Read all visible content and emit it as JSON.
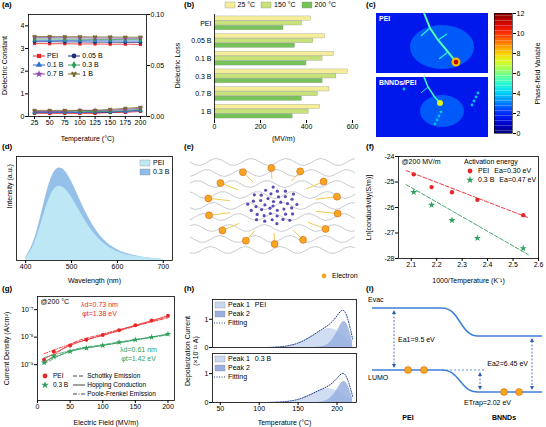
{
  "chart_data": [
    {
      "panel": "(a)",
      "type": "line",
      "xlabel": "Temperature (°C)",
      "ylabel": "Dielectric Constant",
      "y2label": "Dielectric Loss",
      "x": [
        25,
        50,
        75,
        100,
        125,
        150,
        175,
        200
      ],
      "xlim": [
        15,
        210
      ],
      "xticks": [
        25,
        50,
        75,
        100,
        125,
        150,
        175,
        200
      ],
      "ylim": [
        0,
        4.5
      ],
      "yticks": [
        0,
        1,
        2,
        3,
        4
      ],
      "y2lim": [
        0,
        0.1
      ],
      "y2ticks": [
        {
          "value": 0,
          "label": "0.00"
        },
        {
          "value": 0.05,
          "label": "0.05"
        },
        {
          "value": 0.1,
          "label": "0.10"
        }
      ],
      "legend": "center left",
      "series": [
        {
          "name": "PEI",
          "color": "#e8262a",
          "marker": "square",
          "values": [
            3.22,
            3.21,
            3.21,
            3.2,
            3.2,
            3.19,
            3.19,
            3.18
          ]
        },
        {
          "name": "0.05 B",
          "color": "#1b2f7d",
          "marker": "circle",
          "values": [
            3.3,
            3.3,
            3.29,
            3.29,
            3.28,
            3.28,
            3.27,
            3.27
          ]
        },
        {
          "name": "0.1 B",
          "color": "#2f6fd0",
          "marker": "triangle",
          "values": [
            3.36,
            3.36,
            3.35,
            3.35,
            3.34,
            3.34,
            3.33,
            3.33
          ]
        },
        {
          "name": "0.3 B",
          "color": "#2e9e5b",
          "marker": "diamond",
          "values": [
            3.42,
            3.42,
            3.41,
            3.41,
            3.4,
            3.4,
            3.39,
            3.39
          ]
        },
        {
          "name": "0.7 B",
          "color": "#8e44ad",
          "marker": "star",
          "values": [
            3.48,
            3.48,
            3.47,
            3.47,
            3.46,
            3.46,
            3.45,
            3.45
          ]
        },
        {
          "name": "1 B",
          "color": "#7a6a2f",
          "marker": "wye",
          "values": [
            3.53,
            3.53,
            3.52,
            3.52,
            3.51,
            3.51,
            3.5,
            3.5
          ]
        },
        {
          "name": "PEI",
          "axis": "y2",
          "color": "#e8262a",
          "marker": "square",
          "values": [
            0.003,
            0.003,
            0.003,
            0.003,
            0.003,
            0.004,
            0.004,
            0.005
          ]
        },
        {
          "name": "0.05 B",
          "axis": "y2",
          "color": "#1b2f7d",
          "marker": "circle",
          "values": [
            0.004,
            0.004,
            0.004,
            0.004,
            0.004,
            0.004,
            0.005,
            0.006
          ]
        },
        {
          "name": "0.1 B",
          "axis": "y2",
          "color": "#2f6fd0",
          "marker": "triangle",
          "values": [
            0.004,
            0.004,
            0.004,
            0.004,
            0.005,
            0.005,
            0.005,
            0.006
          ]
        },
        {
          "name": "0.3 B",
          "axis": "y2",
          "color": "#2e9e5b",
          "marker": "diamond",
          "values": [
            0.005,
            0.005,
            0.005,
            0.005,
            0.005,
            0.005,
            0.006,
            0.007
          ]
        },
        {
          "name": "0.7 B",
          "axis": "y2",
          "color": "#8e44ad",
          "marker": "star",
          "values": [
            0.005,
            0.005,
            0.005,
            0.006,
            0.006,
            0.006,
            0.007,
            0.008
          ]
        },
        {
          "name": "1 B",
          "axis": "y2",
          "color": "#7a6a2f",
          "marker": "wye",
          "values": [
            0.006,
            0.006,
            0.006,
            0.006,
            0.006,
            0.007,
            0.008,
            0.009
          ]
        }
      ]
    },
    {
      "panel": "(b)",
      "type": "bar",
      "orientation": "horizontal",
      "categories": [
        "PEI",
        "0.05 B",
        "0.1 B",
        "0.3 B",
        "0.7 B",
        "1 B"
      ],
      "xlabel": "(MV/m)",
      "xlim": [
        0,
        600
      ],
      "xticks": [
        0,
        200,
        400,
        600
      ],
      "legend": "top",
      "series": [
        {
          "name": "25 °C",
          "color": "#f4ee9b",
          "values": [
            420,
            480,
            520,
            580,
            500,
            460
          ]
        },
        {
          "name": "150 °C",
          "color": "#c7e27a",
          "values": [
            380,
            430,
            470,
            530,
            450,
            410
          ]
        },
        {
          "name": "200 °C",
          "color": "#78c25a",
          "values": [
            300,
            350,
            400,
            470,
            380,
            340
          ]
        }
      ]
    },
    {
      "panel": "(c)",
      "type": "diagram",
      "images": [
        "PEI",
        "BNNDs/PEI"
      ],
      "colorbar": {
        "label": "Phase-field Variable",
        "range": [
          0,
          12
        ],
        "ticks": [
          0,
          2,
          4,
          6,
          8,
          10,
          12
        ]
      }
    },
    {
      "panel": "(d)",
      "type": "area",
      "xlabel": "Wavelength (nm)",
      "ylabel": "Intensity (a.u.)",
      "tick_labels": "x",
      "x": [
        400,
        420,
        440,
        460,
        480,
        500,
        520,
        540,
        560,
        580,
        600,
        620,
        640,
        660,
        680,
        700
      ],
      "xlim": [
        380,
        720
      ],
      "xticks": [
        400,
        500,
        600,
        700
      ],
      "ylim": [
        0,
        1.1
      ],
      "legend": "upper right",
      "series": [
        {
          "name": "PEI",
          "color": "#bfe9f5",
          "values": [
            0.02,
            0.15,
            0.5,
            0.78,
            0.8,
            0.68,
            0.5,
            0.34,
            0.22,
            0.14,
            0.09,
            0.06,
            0.04,
            0.03,
            0.02,
            0.01
          ]
        },
        {
          "name": "0.3 B",
          "color": "#8fbde8",
          "values": [
            0.03,
            0.19,
            0.62,
            0.97,
            1.0,
            0.85,
            0.62,
            0.42,
            0.27,
            0.17,
            0.11,
            0.07,
            0.05,
            0.03,
            0.02,
            0.01
          ]
        }
      ]
    },
    {
      "panel": "(e)",
      "type": "diagram",
      "legend": "lower right",
      "legend_label": "Electron"
    },
    {
      "panel": "(f)",
      "type": "scatter",
      "condition": "@200 MV/m",
      "xlabel": "1000/Temperature (K⁻¹)",
      "ylabel": "Ln[conductivity(S/m)]",
      "xlim": [
        2.05,
        2.6
      ],
      "xticks": [
        2.1,
        2.2,
        2.3,
        2.4,
        2.5,
        2.6
      ],
      "ylim": [
        -28,
        -24
      ],
      "yticks": [
        -28,
        -27,
        -26,
        -25,
        -24
      ],
      "legend": "upper right",
      "legend_title": "Activation energy",
      "series": [
        {
          "name": "PEI",
          "activation_energy": "Ea=0.30 eV",
          "color": "#e8262a",
          "marker": "circle",
          "x": [
            2.11,
            2.18,
            2.26,
            2.36,
            2.54
          ],
          "values": [
            -24.7,
            -25.2,
            -25.4,
            -25.7,
            -26.3
          ],
          "fit": {
            "line_style": "dashed",
            "x": [
              2.08,
              2.56
            ],
            "values": [
              -24.55,
              -26.4
            ]
          }
        },
        {
          "name": "0.3 B",
          "activation_energy": "Ea=0.47 eV",
          "color": "#2e9e5b",
          "marker": "star",
          "x": [
            2.11,
            2.18,
            2.26,
            2.36,
            2.54
          ],
          "values": [
            -25.4,
            -25.9,
            -26.5,
            -27.2,
            -27.6
          ],
          "fit": {
            "line_style": "dashed",
            "x": [
              2.08,
              2.56
            ],
            "values": [
              -25.1,
              -27.85
            ]
          }
        }
      ]
    },
    {
      "panel": "(g)",
      "type": "line",
      "log": "y",
      "condition": "@200 °C",
      "xlabel": "Electric Field (MV/m)",
      "ylabel": "Current Density (A/cm²)",
      "xlim": [
        0,
        210
      ],
      "xticks": [
        0,
        50,
        100,
        150,
        200
      ],
      "ylim": [
        5e-11,
        3e-07
      ],
      "yticks": [
        {
          "value": 1e-09,
          "label": "10⁻⁹"
        },
        {
          "value": 1e-08,
          "label": "10⁻⁸"
        },
        {
          "value": 1e-07,
          "label": "10⁻⁷"
        }
      ],
      "legend": "lower left",
      "series": [
        {
          "name": "PEI",
          "type": "scatter",
          "color": "#e8262a",
          "marker": "circle",
          "x": [
            10,
            25,
            50,
            75,
            100,
            125,
            150,
            175,
            200
          ],
          "values": [
            1.5e-09,
            3e-09,
            5e-09,
            8e-09,
            1.2e-08,
            1.8e-08,
            2.7e-08,
            4e-08,
            6e-08
          ]
        },
        {
          "name": "0.3 B",
          "type": "scatter",
          "color": "#2e9e5b",
          "marker": "star",
          "x": [
            10,
            25,
            50,
            75,
            100,
            125,
            150,
            175,
            200
          ],
          "values": [
            1.2e-09,
            2e-09,
            3e-09,
            4e-09,
            5e-09,
            6.5e-09,
            8e-09,
            1e-08,
            1.3e-08
          ]
        }
      ],
      "fits": [
        {
          "name": "Schottky Emission",
          "line_style": "dashed",
          "color": "#e8262a",
          "x": [
            10,
            50,
            100,
            150,
            200
          ],
          "values": [
            1.1e-09,
            5.5e-09,
            1.3e-08,
            2.6e-08,
            5e-08
          ]
        },
        {
          "name": "Hopping Conduction",
          "line_style": "solid",
          "color": "#e8262a",
          "x": [
            10,
            50,
            100,
            150,
            200
          ],
          "values": [
            1.6e-09,
            5e-09,
            1.2e-08,
            2.7e-08,
            6e-08
          ]
        },
        {
          "name": "Poole-Frenkel Emission",
          "line_style": "dashdot",
          "color": "#e8262a",
          "x": [
            10,
            50,
            100,
            150,
            200
          ],
          "values": [
            2.5e-09,
            5.5e-09,
            1.15e-08,
            2.5e-08,
            5.5e-08
          ]
        },
        {
          "name": "Schottky Emission",
          "line_style": "dashed",
          "color": "#2e9e5b",
          "x": [
            10,
            50,
            100,
            150,
            200
          ],
          "values": [
            1.05e-09,
            3.2e-09,
            5.3e-09,
            8.2e-09,
            1.2e-08
          ]
        },
        {
          "name": "Hopping Conduction",
          "line_style": "solid",
          "color": "#2e9e5b",
          "x": [
            10,
            50,
            100,
            150,
            200
          ],
          "values": [
            1.3e-09,
            3e-09,
            5e-09,
            8e-09,
            1.3e-08
          ]
        },
        {
          "name": "Poole-Frenkel Emission",
          "line_style": "dashdot",
          "color": "#2e9e5b",
          "x": [
            10,
            50,
            100,
            150,
            200
          ],
          "values": [
            1.8e-09,
            3.2e-09,
            5e-09,
            7.8e-09,
            1.25e-08
          ]
        }
      ],
      "annotations": [
        {
          "text": "λd=0.73 nm",
          "series": "PEI"
        },
        {
          "text": "φt=1.38 eV",
          "series": "PEI"
        },
        {
          "text": "λd=0.61 nm",
          "series": "0.3 B"
        },
        {
          "text": "φt=1.42 eV",
          "series": "0.3 B"
        }
      ]
    },
    {
      "panel": "(h)",
      "type": "area",
      "xlabel": "Temperature (°C)",
      "ylabel": "Depolarization Current (×10⁻¹¹ A)",
      "x": [
        50,
        60,
        70,
        80,
        90,
        100,
        110,
        120,
        130,
        140,
        150,
        160,
        170,
        180,
        190,
        200,
        210,
        220
      ],
      "xlim": [
        40,
        225
      ],
      "xticks": [
        50,
        100,
        150,
        200
      ],
      "ylim": [
        0,
        1.7
      ],
      "yticks": [
        0,
        1
      ],
      "legend": "upper left",
      "panels": [
        {
          "name": "PEI",
          "series": [
            {
              "name": "Peak 1",
              "color": "#c9d7f0",
              "values": [
                0,
                0,
                0,
                0,
                0,
                0,
                0,
                0.01,
                0.03,
                0.07,
                0.15,
                0.28,
                0.45,
                0.62,
                0.7,
                0.6,
                0.35,
                0.1
              ]
            },
            {
              "name": "Peak 2",
              "color": "#98afe0",
              "values": [
                0,
                0,
                0,
                0,
                0,
                0,
                0,
                0,
                0,
                0,
                0,
                0,
                0,
                0.02,
                0.1,
                0.5,
                1.2,
                0.2
              ]
            },
            {
              "name": "Fitting",
              "type": "line",
              "line_style": "dotted",
              "color": "#1c3d8c",
              "values": [
                0,
                0,
                0,
                0,
                0,
                0,
                0,
                0.01,
                0.03,
                0.07,
                0.15,
                0.28,
                0.45,
                0.64,
                0.8,
                1.1,
                1.55,
                0.3
              ]
            }
          ]
        },
        {
          "name": "0.3 B",
          "series": [
            {
              "name": "Peak 1",
              "color": "#c9d7f0",
              "values": [
                0,
                0,
                0,
                0,
                0,
                0,
                0,
                0.01,
                0.02,
                0.05,
                0.1,
                0.2,
                0.33,
                0.45,
                0.5,
                0.42,
                0.25,
                0.07
              ]
            },
            {
              "name": "Peak 2",
              "color": "#98afe0",
              "values": [
                0,
                0,
                0,
                0,
                0,
                0,
                0,
                0,
                0,
                0,
                0,
                0,
                0,
                0.01,
                0.08,
                0.4,
                0.95,
                0.15
              ]
            },
            {
              "name": "Fitting",
              "type": "line",
              "line_style": "dotted",
              "color": "#1c3d8c",
              "values": [
                0,
                0,
                0,
                0,
                0,
                0,
                0,
                0.01,
                0.02,
                0.05,
                0.1,
                0.2,
                0.33,
                0.46,
                0.58,
                0.82,
                1.2,
                0.22
              ]
            }
          ]
        }
      ]
    },
    {
      "panel": "(i)",
      "type": "diagram",
      "labels": {
        "vacuum": "Evac",
        "lumo": "LUMO",
        "ea1": "Ea1=9.5 eV",
        "ea2": "Ea2=6.45 eV",
        "trap": "ETrap=2.02 eV",
        "left": "PEI",
        "right": "BNNDs"
      }
    }
  ]
}
